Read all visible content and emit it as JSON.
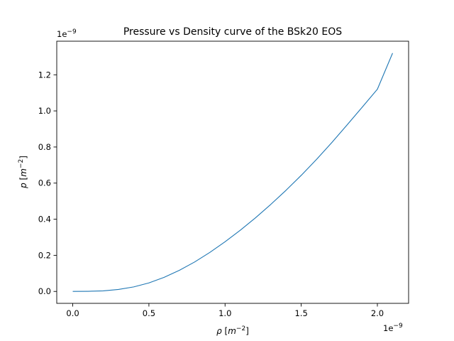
{
  "chart_data": {
    "type": "line",
    "title": "Pressure vs Density curve of the BSk20 EOS",
    "xlabel": {
      "symbol": "ρ",
      "unit_base": "m",
      "unit_exp": "−2"
    },
    "ylabel": {
      "symbol": "p",
      "unit_base": "m",
      "unit_exp": "−2"
    },
    "x_offset_text": {
      "base": "1e",
      "exp": "−9"
    },
    "y_offset_text": {
      "base": "1e",
      "exp": "−9"
    },
    "xlim": [
      -0.105,
      2.205
    ],
    "ylim": [
      -0.066,
      1.386
    ],
    "xticks": [
      0.0,
      0.5,
      1.0,
      1.5,
      2.0
    ],
    "xtick_labels": [
      "0.0",
      "0.5",
      "1.0",
      "1.5",
      "2.0"
    ],
    "yticks": [
      0.0,
      0.2,
      0.4,
      0.6,
      0.8,
      1.0,
      1.2
    ],
    "ytick_labels": [
      "0.0",
      "0.2",
      "0.4",
      "0.6",
      "0.8",
      "1.0",
      "1.2"
    ],
    "grid": false,
    "line_color": "#1f77b4",
    "series": [
      {
        "x": [
          0.0,
          0.1,
          0.2,
          0.3,
          0.4,
          0.5,
          0.6,
          0.7,
          0.8,
          0.9,
          1.0,
          1.1,
          1.2,
          1.3,
          1.4,
          1.5,
          1.6,
          1.7,
          1.8,
          1.9,
          2.0,
          2.1
        ],
        "y": [
          0.0,
          0.0006,
          0.003,
          0.011,
          0.025,
          0.047,
          0.078,
          0.117,
          0.163,
          0.216,
          0.275,
          0.339,
          0.408,
          0.482,
          0.56,
          0.643,
          0.731,
          0.824,
          0.921,
          1.02,
          1.12,
          1.32
        ]
      }
    ]
  }
}
